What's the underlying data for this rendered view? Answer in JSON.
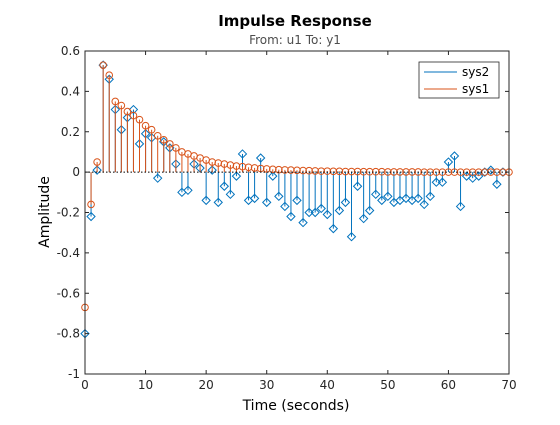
{
  "chart_data": {
    "type": "scatter",
    "style": "stem",
    "title": "Impulse Response",
    "subtitle": "From: u1  To: y1",
    "xlabel": "Time (seconds)",
    "ylabel": "Amplitude",
    "xlim": [
      0,
      70
    ],
    "ylim": [
      -1,
      0.6
    ],
    "xticks": [
      "0",
      "10",
      "20",
      "30",
      "40",
      "50",
      "60",
      "70"
    ],
    "yticks": [
      "-1",
      "-0.8",
      "-0.6",
      "-0.4",
      "-0.2",
      "0",
      "0.2",
      "0.4",
      "0.6"
    ],
    "xtick_values": [
      0,
      10,
      20,
      30,
      40,
      50,
      60,
      70
    ],
    "ytick_values": [
      -1,
      -0.8,
      -0.6,
      -0.4,
      -0.2,
      0,
      0.2,
      0.4,
      0.6
    ],
    "grid": false,
    "legend_position": "top-right",
    "series": [
      {
        "name": "sys2",
        "color": "#0072bd",
        "marker": "diamond",
        "x": [
          0,
          1,
          2,
          3,
          4,
          5,
          6,
          7,
          8,
          9,
          10,
          11,
          12,
          13,
          14,
          15,
          16,
          17,
          18,
          19,
          20,
          21,
          22,
          23,
          24,
          25,
          26,
          27,
          28,
          29,
          30,
          31,
          32,
          33,
          34,
          35,
          36,
          37,
          38,
          39,
          40,
          41,
          42,
          43,
          44,
          45,
          46,
          47,
          48,
          49,
          50,
          51,
          52,
          53,
          54,
          55,
          56,
          57,
          58,
          59,
          60,
          61,
          62,
          63,
          64,
          65,
          66,
          67,
          68,
          69
        ],
        "y": [
          -0.8,
          -0.22,
          0.01,
          0.53,
          0.46,
          0.31,
          0.21,
          0.27,
          0.31,
          0.14,
          0.19,
          0.17,
          -0.03,
          0.15,
          0.12,
          0.04,
          -0.1,
          -0.09,
          0.04,
          0.02,
          -0.14,
          0.01,
          -0.15,
          -0.07,
          -0.11,
          -0.02,
          0.09,
          -0.14,
          -0.13,
          0.07,
          -0.15,
          -0.02,
          -0.12,
          -0.17,
          -0.22,
          -0.14,
          -0.25,
          -0.2,
          -0.2,
          -0.18,
          -0.21,
          -0.28,
          -0.19,
          -0.15,
          -0.32,
          -0.07,
          -0.23,
          -0.19,
          -0.11,
          -0.14,
          -0.12,
          -0.15,
          -0.14,
          -0.13,
          -0.14,
          -0.13,
          -0.16,
          -0.12,
          -0.05,
          -0.05,
          0.05,
          0.08,
          -0.17,
          -0.02,
          -0.03,
          -0.02,
          0.0,
          0.01,
          -0.06,
          0.0
        ]
      },
      {
        "name": "sys1",
        "color": "#d95319",
        "marker": "circle",
        "x": [
          0,
          1,
          2,
          3,
          4,
          5,
          6,
          7,
          8,
          9,
          10,
          11,
          12,
          13,
          14,
          15,
          16,
          17,
          18,
          19,
          20,
          21,
          22,
          23,
          24,
          25,
          26,
          27,
          28,
          29,
          30,
          31,
          32,
          33,
          34,
          35,
          36,
          37,
          38,
          39,
          40,
          41,
          42,
          43,
          44,
          45,
          46,
          47,
          48,
          49,
          50,
          51,
          52,
          53,
          54,
          55,
          56,
          57,
          58,
          59,
          60,
          61,
          62,
          63,
          64,
          65,
          66,
          67,
          68,
          69,
          70
        ],
        "y": [
          -0.67,
          -0.16,
          0.05,
          0.53,
          0.48,
          0.35,
          0.33,
          0.3,
          0.28,
          0.26,
          0.23,
          0.21,
          0.18,
          0.16,
          0.14,
          0.12,
          0.1,
          0.09,
          0.08,
          0.07,
          0.06,
          0.05,
          0.045,
          0.04,
          0.035,
          0.03,
          0.027,
          0.024,
          0.021,
          0.018,
          0.016,
          0.014,
          0.012,
          0.011,
          0.01,
          0.009,
          0.008,
          0.007,
          0.006,
          0.005,
          0.005,
          0.004,
          0.004,
          0.003,
          0.003,
          0.003,
          0.002,
          0.002,
          0.002,
          0.002,
          0.001,
          0.001,
          0.001,
          0.001,
          0.001,
          0.001,
          0.0,
          0.0,
          0.0,
          0.0,
          0.0,
          0.0,
          0.0,
          0.0,
          0.0,
          0.0,
          0.0,
          0.0,
          0.0,
          0.0,
          0.0
        ]
      }
    ]
  }
}
